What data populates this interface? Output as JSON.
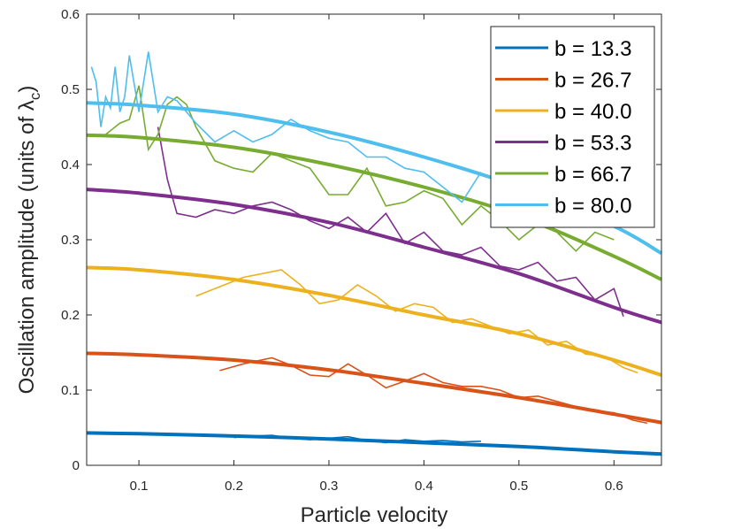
{
  "chart_data": {
    "type": "line",
    "xlabel": "Particle velocity",
    "ylabel": "Oscillation amplitude (units of λ",
    "ylabel_sub": "c",
    "ylabel_close": ")",
    "xlim": [
      0.045,
      0.65
    ],
    "ylim": [
      0,
      0.6
    ],
    "xticks": [
      0.1,
      0.2,
      0.3,
      0.4,
      0.5,
      0.6
    ],
    "yticks": [
      0,
      0.1,
      0.2,
      0.3,
      0.4,
      0.5,
      0.6
    ],
    "xtick_labels": [
      "0.1",
      "0.2",
      "0.3",
      "0.4",
      "0.5",
      "0.6"
    ],
    "ytick_labels": [
      "0",
      "0.1",
      "0.2",
      "0.3",
      "0.4",
      "0.5",
      "0.6"
    ],
    "grid": false,
    "legend_position": "top-right",
    "series": [
      {
        "name": "b = 13.3",
        "color": "#0072BD",
        "fit": {
          "x": [
            0.045,
            0.1,
            0.2,
            0.3,
            0.4,
            0.5,
            0.6,
            0.65
          ],
          "y": [
            0.043,
            0.042,
            0.039,
            0.035,
            0.03,
            0.025,
            0.018,
            0.015
          ]
        },
        "data": {
          "x": [
            0.2,
            0.22,
            0.24,
            0.26,
            0.28,
            0.3,
            0.32,
            0.34,
            0.36,
            0.38,
            0.4,
            0.42,
            0.44,
            0.46
          ],
          "y": [
            0.037,
            0.039,
            0.04,
            0.036,
            0.034,
            0.036,
            0.038,
            0.033,
            0.03,
            0.034,
            0.032,
            0.033,
            0.031,
            0.032
          ]
        }
      },
      {
        "name": "b = 26.7",
        "color": "#D95319",
        "fit": {
          "x": [
            0.045,
            0.1,
            0.2,
            0.3,
            0.4,
            0.5,
            0.6,
            0.65
          ],
          "y": [
            0.149,
            0.147,
            0.14,
            0.127,
            0.109,
            0.09,
            0.068,
            0.057
          ]
        },
        "data": {
          "x": [
            0.185,
            0.21,
            0.24,
            0.26,
            0.28,
            0.3,
            0.32,
            0.34,
            0.36,
            0.38,
            0.4,
            0.42,
            0.44,
            0.46,
            0.48,
            0.5,
            0.52,
            0.54,
            0.56,
            0.58,
            0.6,
            0.62,
            0.635
          ],
          "y": [
            0.126,
            0.135,
            0.143,
            0.133,
            0.12,
            0.118,
            0.135,
            0.12,
            0.103,
            0.112,
            0.122,
            0.11,
            0.105,
            0.105,
            0.1,
            0.09,
            0.092,
            0.085,
            0.078,
            0.072,
            0.07,
            0.06,
            0.056
          ]
        }
      },
      {
        "name": "b = 40.0",
        "color": "#EDB120",
        "fit": {
          "x": [
            0.045,
            0.1,
            0.2,
            0.3,
            0.4,
            0.5,
            0.6,
            0.65
          ],
          "y": [
            0.263,
            0.26,
            0.247,
            0.226,
            0.2,
            0.175,
            0.14,
            0.12
          ]
        },
        "data": {
          "x": [
            0.16,
            0.19,
            0.21,
            0.23,
            0.25,
            0.27,
            0.29,
            0.31,
            0.33,
            0.35,
            0.37,
            0.39,
            0.41,
            0.43,
            0.45,
            0.47,
            0.49,
            0.51,
            0.53,
            0.55,
            0.57,
            0.59,
            0.61,
            0.625
          ],
          "y": [
            0.225,
            0.24,
            0.25,
            0.255,
            0.26,
            0.24,
            0.215,
            0.22,
            0.24,
            0.225,
            0.205,
            0.215,
            0.21,
            0.19,
            0.195,
            0.185,
            0.175,
            0.18,
            0.16,
            0.165,
            0.148,
            0.145,
            0.13,
            0.123
          ]
        }
      },
      {
        "name": "b = 53.3",
        "color": "#7E2F8E",
        "fit": {
          "x": [
            0.045,
            0.1,
            0.2,
            0.3,
            0.4,
            0.5,
            0.6,
            0.65
          ],
          "y": [
            0.367,
            0.362,
            0.347,
            0.323,
            0.29,
            0.255,
            0.21,
            0.19
          ]
        },
        "data": {
          "x": [
            0.12,
            0.13,
            0.14,
            0.16,
            0.18,
            0.2,
            0.22,
            0.24,
            0.26,
            0.28,
            0.3,
            0.32,
            0.34,
            0.36,
            0.38,
            0.4,
            0.42,
            0.44,
            0.46,
            0.48,
            0.5,
            0.52,
            0.54,
            0.56,
            0.58,
            0.6,
            0.61
          ],
          "y": [
            0.45,
            0.38,
            0.335,
            0.33,
            0.34,
            0.335,
            0.345,
            0.35,
            0.34,
            0.325,
            0.315,
            0.33,
            0.31,
            0.335,
            0.295,
            0.31,
            0.285,
            0.28,
            0.29,
            0.265,
            0.26,
            0.27,
            0.245,
            0.25,
            0.22,
            0.235,
            0.198
          ]
        }
      },
      {
        "name": "b = 66.7",
        "color": "#77AC30",
        "fit": {
          "x": [
            0.045,
            0.1,
            0.2,
            0.3,
            0.4,
            0.5,
            0.6,
            0.65
          ],
          "y": [
            0.439,
            0.436,
            0.423,
            0.4,
            0.37,
            0.332,
            0.278,
            0.247
          ]
        },
        "data": {
          "x": [
            0.065,
            0.08,
            0.09,
            0.1,
            0.11,
            0.12,
            0.13,
            0.14,
            0.15,
            0.16,
            0.18,
            0.2,
            0.22,
            0.24,
            0.26,
            0.28,
            0.3,
            0.32,
            0.34,
            0.36,
            0.38,
            0.4,
            0.42,
            0.44,
            0.46,
            0.48,
            0.5,
            0.52,
            0.54,
            0.56,
            0.58,
            0.6
          ],
          "y": [
            0.44,
            0.455,
            0.46,
            0.505,
            0.42,
            0.44,
            0.48,
            0.49,
            0.48,
            0.45,
            0.405,
            0.395,
            0.39,
            0.415,
            0.405,
            0.395,
            0.36,
            0.36,
            0.395,
            0.345,
            0.35,
            0.365,
            0.355,
            0.32,
            0.345,
            0.325,
            0.3,
            0.32,
            0.31,
            0.285,
            0.31,
            0.3
          ]
        }
      },
      {
        "name": "b = 80.0",
        "color": "#4DBEEE",
        "fit": {
          "x": [
            0.045,
            0.1,
            0.2,
            0.3,
            0.4,
            0.5,
            0.6,
            0.65
          ],
          "y": [
            0.482,
            0.479,
            0.467,
            0.443,
            0.41,
            0.37,
            0.318,
            0.282
          ]
        },
        "data": {
          "x": [
            0.05,
            0.055,
            0.06,
            0.065,
            0.07,
            0.075,
            0.08,
            0.085,
            0.09,
            0.1,
            0.11,
            0.12,
            0.13,
            0.14,
            0.16,
            0.18,
            0.2,
            0.22,
            0.24,
            0.26,
            0.28,
            0.3,
            0.32,
            0.34,
            0.36,
            0.38,
            0.4,
            0.42,
            0.44,
            0.46
          ],
          "y": [
            0.53,
            0.51,
            0.45,
            0.49,
            0.475,
            0.53,
            0.47,
            0.49,
            0.545,
            0.47,
            0.55,
            0.47,
            0.49,
            0.485,
            0.455,
            0.43,
            0.445,
            0.43,
            0.44,
            0.46,
            0.445,
            0.435,
            0.43,
            0.41,
            0.41,
            0.395,
            0.39,
            0.37,
            0.35,
            0.39
          ]
        }
      }
    ]
  }
}
